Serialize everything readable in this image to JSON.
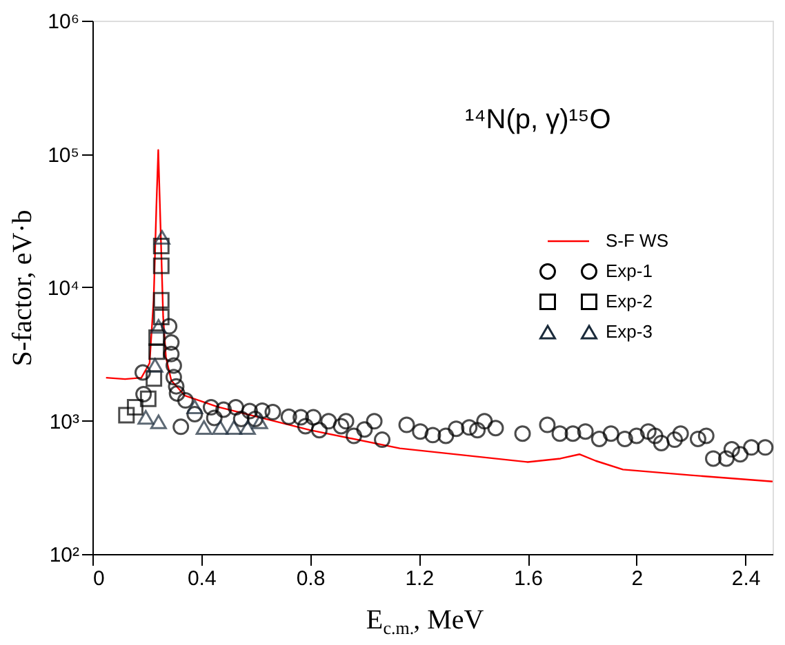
{
  "chart_data": {
    "type": "scatter",
    "xlabel": "E$_{c.m.}$, MeV",
    "ylabel": "S-factor, eV·b",
    "annotations": [
      "¹⁴N(p, γ)¹⁵O"
    ],
    "log": "y",
    "xlim": [
      0,
      2.5
    ],
    "xticks": [
      {
        "value": 0,
        "label": "0"
      },
      0.4,
      0.8,
      1.2,
      1.6,
      {
        "value": 2,
        "label": "2"
      },
      2.4
    ],
    "ylim": [
      100,
      1000000
    ],
    "yticks": [
      {
        "value": 100,
        "label": "10²"
      },
      {
        "value": 1000,
        "label": "10³"
      },
      {
        "value": 10000,
        "label": "10⁴"
      },
      {
        "value": 100000,
        "label": "10⁵"
      },
      {
        "value": 1000000,
        "label": "10⁶"
      }
    ],
    "grid": false,
    "legend": "right",
    "series": [
      {
        "name": "S-F WS",
        "type": "line",
        "color": "#ff0000",
        "marker": "none",
        "line_style": "solid",
        "x": [
          0.05,
          0.12,
          0.18,
          0.21,
          0.225,
          0.235,
          0.242,
          0.25,
          0.26,
          0.27,
          0.29,
          0.34,
          0.46,
          0.8,
          1.13,
          1.6,
          1.72,
          1.79,
          1.85,
          1.95,
          2.2,
          2.5
        ],
        "values": [
          2100,
          2050,
          2100,
          2700,
          8000,
          40000,
          107000,
          30000,
          6000,
          3000,
          2000,
          1540,
          1270,
          850,
          620,
          490,
          520,
          560,
          500,
          430,
          390,
          350
        ]
      },
      {
        "name": "Exp-1",
        "type": "scatter",
        "color": "#000000",
        "marker": "circle",
        "x": [
          0.185,
          0.188,
          0.282,
          0.29,
          0.29,
          0.299,
          0.299,
          0.308,
          0.311,
          0.342,
          0.325,
          0.376,
          0.436,
          0.448,
          0.482,
          0.527,
          0.547,
          0.578,
          0.598,
          0.624,
          0.663,
          0.722,
          0.766,
          0.783,
          0.812,
          0.834,
          0.868,
          0.914,
          0.932,
          0.961,
          1.0,
          1.036,
          1.065,
          1.155,
          1.205,
          1.251,
          1.299,
          1.337,
          1.385,
          1.415,
          1.441,
          1.482,
          1.581,
          1.672,
          1.718,
          1.766,
          1.812,
          1.863,
          1.906,
          1.957,
          2.0,
          2.043,
          2.068,
          2.091,
          2.14,
          2.162,
          2.226,
          2.256,
          2.282,
          2.33,
          2.35,
          2.381,
          2.422,
          2.473
        ],
        "values": [
          2300,
          1580,
          5100,
          3860,
          3160,
          2590,
          2120,
          1810,
          1600,
          1420,
          900,
          1120,
          1260,
          1050,
          1210,
          1260,
          1030,
          1180,
          1030,
          1190,
          1160,
          1070,
          1060,
          910,
          1060,
          850,
          990,
          910,
          990,
          770,
          860,
          990,
          720,
          930,
          830,
          780,
          770,
          870,
          890,
          850,
          990,
          880,
          800,
          930,
          800,
          800,
          830,
          730,
          800,
          730,
          770,
          830,
          770,
          680,
          720,
          800,
          730,
          770,
          520,
          520,
          610,
          560,
          630,
          630
        ]
      },
      {
        "name": "Exp-2",
        "type": "scatter",
        "color": "#000000",
        "marker": "square",
        "x": [
          0.253,
          0.253,
          0.253,
          0.253,
          0.236,
          0.236,
          0.226,
          0.205,
          0.157,
          0.125
        ],
        "values": [
          20400,
          14500,
          8000,
          6000,
          4200,
          3300,
          2070,
          1460,
          1260,
          1100
        ]
      },
      {
        "name": "Exp-3",
        "type": "scatter",
        "color": "#1a2a3a",
        "marker": "triangle",
        "x": [
          0.256,
          0.243,
          0.23,
          0.196,
          0.243,
          0.376,
          0.41,
          0.47,
          0.52,
          0.57,
          0.615
        ],
        "values": [
          23700,
          5100,
          2600,
          1060,
          980,
          1270,
          890,
          890,
          890,
          890,
          980
        ]
      }
    ]
  }
}
